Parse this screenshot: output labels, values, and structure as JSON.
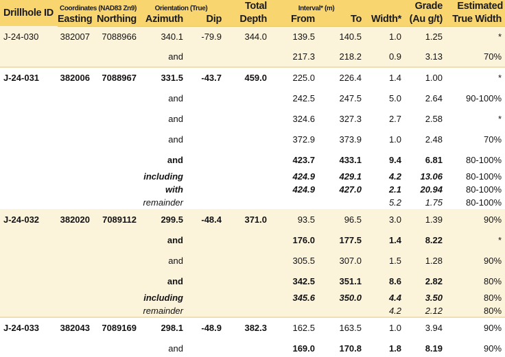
{
  "meta": {
    "colors": {
      "page_bg": "#FFFFFF",
      "header_bg": "#F8D56E",
      "header_text": "#1A1A20",
      "header_edge": "#E9C35F",
      "cream_bg": "#FCF3DB",
      "divider": "#F0DFB5",
      "body_text": "#121212"
    }
  },
  "header": {
    "drillhole_id": "Drillhole ID",
    "coordinates_group": "Coordinates (NAD83 Zn9)",
    "orientation_group": "Orientation (True)",
    "interval_group": "Interval* (m)",
    "total_line1": "Total",
    "grade_line1": "Grade",
    "estimated_line1": "Estimated",
    "cols": [
      "Easting",
      "Northing",
      "Azimuth",
      "Dip",
      "Depth",
      "From",
      "To",
      "Width*",
      "(Au g/t)",
      "True Width"
    ]
  },
  "chart_data": {
    "type": "table",
    "title": "Drillhole assay results",
    "columns": [
      "Drillhole ID",
      "Easting",
      "Northing",
      "Azimuth",
      "Dip",
      "Total Depth",
      "From",
      "To",
      "Width*",
      "Grade (Au g/t)",
      "Estimated True Width"
    ],
    "rows": [
      {
        "cells": [
          "J-24-030",
          "382007",
          "7088966",
          "340.1",
          "-79.9",
          "344.0",
          "139.5",
          "140.5",
          "1.0",
          "1.25",
          "*"
        ],
        "left": "regular",
        "right": "regular",
        "size": "main",
        "shade": "cream",
        "end": false
      },
      {
        "cells": [
          "",
          "",
          "",
          "and",
          "",
          "",
          "217.3",
          "218.2",
          "0.9",
          "3.13",
          "70%"
        ],
        "left": "regular",
        "right": "regular",
        "size": "main",
        "shade": "cream",
        "end": true
      },
      {
        "cells": [
          "J-24-031",
          "382006",
          "7088967",
          "331.5",
          "-43.7",
          "459.0",
          "225.0",
          "226.4",
          "1.4",
          "1.00",
          "*"
        ],
        "left": "bold",
        "right": "regular",
        "size": "main",
        "shade": "white",
        "end": false
      },
      {
        "cells": [
          "",
          "",
          "",
          "and",
          "",
          "",
          "242.5",
          "247.5",
          "5.0",
          "2.64",
          "90-100%"
        ],
        "left": "regular",
        "right": "regular",
        "size": "main",
        "shade": "white",
        "end": false
      },
      {
        "cells": [
          "",
          "",
          "",
          "and",
          "",
          "",
          "324.6",
          "327.3",
          "2.7",
          "2.58",
          "*"
        ],
        "left": "regular",
        "right": "regular",
        "size": "main",
        "shade": "white",
        "end": false
      },
      {
        "cells": [
          "",
          "",
          "",
          "and",
          "",
          "",
          "372.9",
          "373.9",
          "1.0",
          "2.48",
          "70%"
        ],
        "left": "regular",
        "right": "regular",
        "size": "main",
        "shade": "white",
        "end": false
      },
      {
        "cells": [
          "",
          "",
          "",
          "and",
          "",
          "",
          "423.7",
          "433.1",
          "9.4",
          "6.81",
          "80-100%"
        ],
        "left": "bold",
        "right": "bold",
        "size": "main",
        "shade": "white",
        "end": false
      },
      {
        "cells": [
          "",
          "",
          "",
          "including",
          "",
          "",
          "424.9",
          "429.1",
          "4.2",
          "13.06",
          "80-100%"
        ],
        "left": "bold-italic",
        "right": "bold-italic",
        "size": "sub",
        "shade": "white",
        "end": false
      },
      {
        "cells": [
          "",
          "",
          "",
          "with",
          "",
          "",
          "424.9",
          "427.0",
          "2.1",
          "20.94",
          "80-100%"
        ],
        "left": "bold-italic",
        "right": "bold-italic",
        "size": "sub",
        "shade": "white",
        "end": false
      },
      {
        "cells": [
          "",
          "",
          "",
          "remainder",
          "",
          "",
          "",
          "",
          "5.2",
          "1.75",
          "80-100%"
        ],
        "left": "italic",
        "right": "italic",
        "size": "sub",
        "shade": "white",
        "end": false
      },
      {
        "cells": [
          "J-24-032",
          "382020",
          "7089112",
          "299.5",
          "-48.4",
          "371.0",
          "93.5",
          "96.5",
          "3.0",
          "1.39",
          "90%"
        ],
        "left": "bold",
        "right": "regular",
        "size": "main",
        "shade": "cream",
        "end": false
      },
      {
        "cells": [
          "",
          "",
          "",
          "and",
          "",
          "",
          "176.0",
          "177.5",
          "1.4",
          "8.22",
          "*"
        ],
        "left": "bold",
        "right": "bold",
        "size": "main",
        "shade": "cream",
        "end": false
      },
      {
        "cells": [
          "",
          "",
          "",
          "and",
          "",
          "",
          "305.5",
          "307.0",
          "1.5",
          "1.28",
          "90%"
        ],
        "left": "regular",
        "right": "regular",
        "size": "main",
        "shade": "cream",
        "end": false
      },
      {
        "cells": [
          "",
          "",
          "",
          "and",
          "",
          "",
          "342.5",
          "351.1",
          "8.6",
          "2.82",
          "80%"
        ],
        "left": "bold",
        "right": "bold",
        "size": "main",
        "shade": "cream",
        "end": false
      },
      {
        "cells": [
          "",
          "",
          "",
          "including",
          "",
          "",
          "345.6",
          "350.0",
          "4.4",
          "3.50",
          "80%"
        ],
        "left": "bold-italic",
        "right": "bold-italic",
        "size": "sub",
        "shade": "cream",
        "end": false
      },
      {
        "cells": [
          "",
          "",
          "",
          "remainder",
          "",
          "",
          "",
          "",
          "4.2",
          "2.12",
          "80%"
        ],
        "left": "italic",
        "right": "italic",
        "size": "sub",
        "shade": "cream",
        "end": true
      },
      {
        "cells": [
          "J-24-033",
          "382043",
          "7089169",
          "298.1",
          "-48.9",
          "382.3",
          "162.5",
          "163.5",
          "1.0",
          "3.94",
          "90%"
        ],
        "left": "bold",
        "right": "regular",
        "size": "main",
        "shade": "white",
        "end": false
      },
      {
        "cells": [
          "",
          "",
          "",
          "and",
          "",
          "",
          "169.0",
          "170.8",
          "1.8",
          "8.19",
          "90%"
        ],
        "left": "regular",
        "right": "bold",
        "size": "main",
        "shade": "white",
        "end": false
      }
    ]
  }
}
